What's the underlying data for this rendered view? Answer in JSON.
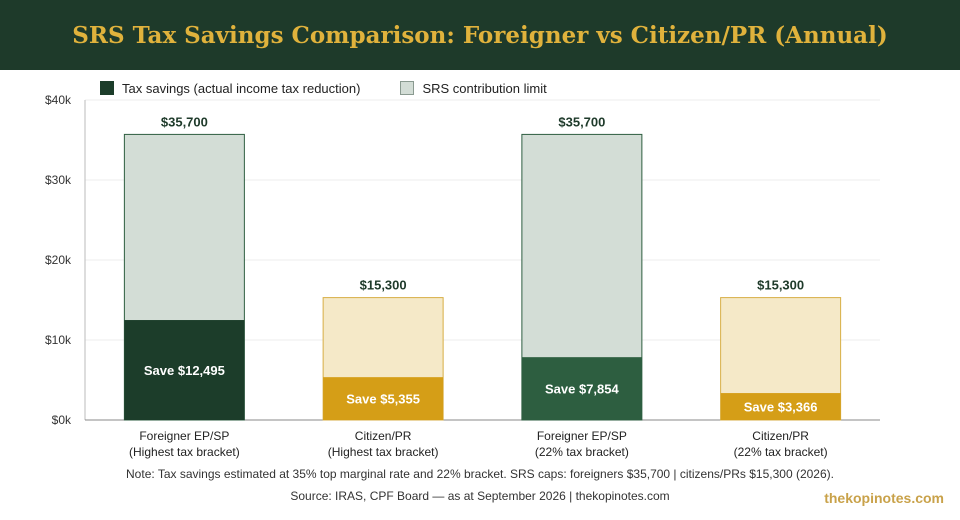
{
  "header": {
    "title": "SRS Tax Savings Comparison: Foreigner vs Citizen/PR (Annual)"
  },
  "legend": {
    "tax_savings": "Tax savings (actual income tax reduction)",
    "srs_limit": "SRS contribution limit"
  },
  "colors": {
    "header_bg": "#1e3a2a",
    "title": "#e0b23c",
    "foreigner_limit_fill": "#d3ddd6",
    "foreigner_limit_stroke": "#2e5e40",
    "foreigner_save_dark": "#1c3d2a",
    "foreigner_save_mid": "#2d5e40",
    "citizen_limit_fill": "#f5e9c8",
    "citizen_limit_stroke": "#d7ae45",
    "citizen_save": "#d59e17",
    "watermark": "#c9a24a"
  },
  "chart_data": {
    "type": "bar",
    "categories": [
      [
        "Foreigner EP/SP",
        "(Highest tax bracket)"
      ],
      [
        "Citizen/PR",
        "(Highest tax bracket)"
      ],
      [
        "Foreigner EP/SP",
        "(22% tax bracket)"
      ],
      [
        "Citizen/PR",
        "(22% tax bracket)"
      ]
    ],
    "series": [
      {
        "name": "SRS contribution limit",
        "values": [
          35700,
          15300,
          35700,
          15300
        ],
        "labels": [
          "$35,700",
          "$15,300",
          "$35,700",
          "$15,300"
        ]
      },
      {
        "name": "Tax savings (actual income tax reduction)",
        "values": [
          12495,
          5355,
          7854,
          3366
        ],
        "labels": [
          "Save $12,495",
          "Save $5,355",
          "Save $7,854",
          "Save $3,366"
        ]
      }
    ],
    "group": [
      "foreigner",
      "citizen",
      "foreigner",
      "citizen"
    ],
    "ylim": [
      0,
      40000
    ],
    "yticks": [
      0,
      10000,
      20000,
      30000,
      40000
    ],
    "ytick_labels": [
      "$0k",
      "$10k",
      "$20k",
      "$30k",
      "$40k"
    ],
    "grid": true,
    "legend_position": "top-left"
  },
  "footer": {
    "note": "Note: Tax savings estimated at 35% top marginal rate and 22% bracket. SRS caps: foreigners $35,700 | citizens/PRs $15,300 (2026).",
    "source": "Source: IRAS, CPF Board — as at September 2026 | thekopinotes.com"
  },
  "watermark": "thekopinotes.com"
}
